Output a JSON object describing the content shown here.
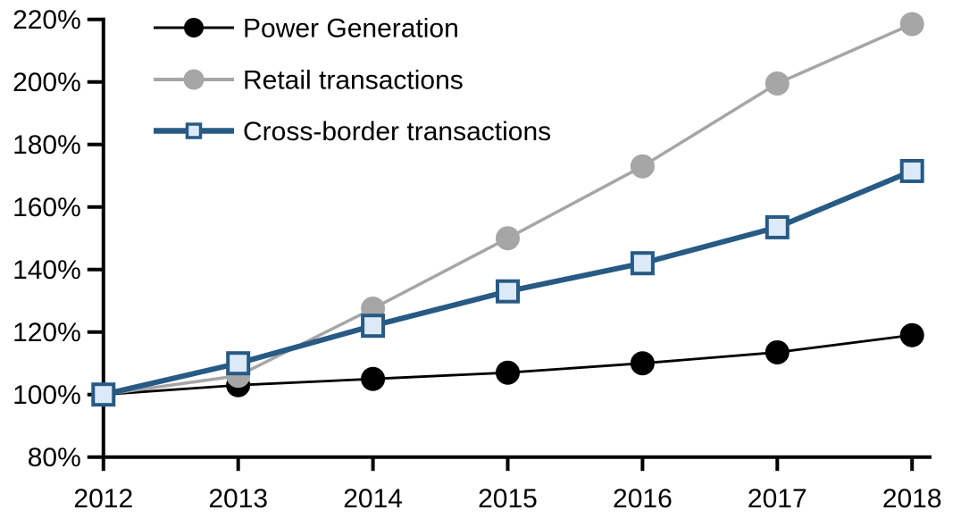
{
  "page": {
    "background": "#FFFFFF",
    "axis_color": "#000000",
    "text_color": "#000000"
  },
  "chart_data": {
    "type": "line",
    "title": "",
    "xlabel": "",
    "ylabel": "",
    "grid": false,
    "legend_position": "top-left-inside",
    "x": [
      2012,
      2013,
      2014,
      2015,
      2016,
      2017,
      2018
    ],
    "x_labels": [
      "2012",
      "2013",
      "2014",
      "2015",
      "2016",
      "2017",
      "2018"
    ],
    "ylim": [
      80,
      220
    ],
    "y_ticks": [
      80,
      100,
      120,
      140,
      160,
      180,
      200,
      220
    ],
    "y_tick_labels": [
      "80%",
      "100%",
      "120%",
      "140%",
      "160%",
      "180%",
      "200%",
      "220%"
    ],
    "series": [
      {
        "name": "Power Generation",
        "marker": "circle",
        "line_color": "#000000",
        "marker_fill": "#000000",
        "marker_stroke": "#000000",
        "values": [
          100,
          103,
          105,
          107,
          110,
          113.5,
          119
        ]
      },
      {
        "name": "Retail transactions",
        "marker": "circle",
        "line_color": "#A6A6A6",
        "marker_fill": "#A6A6A6",
        "marker_stroke": "#A6A6A6",
        "values": [
          100,
          106,
          127.5,
          150,
          173,
          199.5,
          218.5
        ]
      },
      {
        "name": "Cross-border transactions",
        "marker": "square",
        "line_color": "#275A84",
        "marker_fill": "#DCE9F7",
        "marker_stroke": "#275A84",
        "values": [
          100,
          110,
          122,
          133,
          142,
          153.5,
          171.5
        ]
      }
    ]
  }
}
